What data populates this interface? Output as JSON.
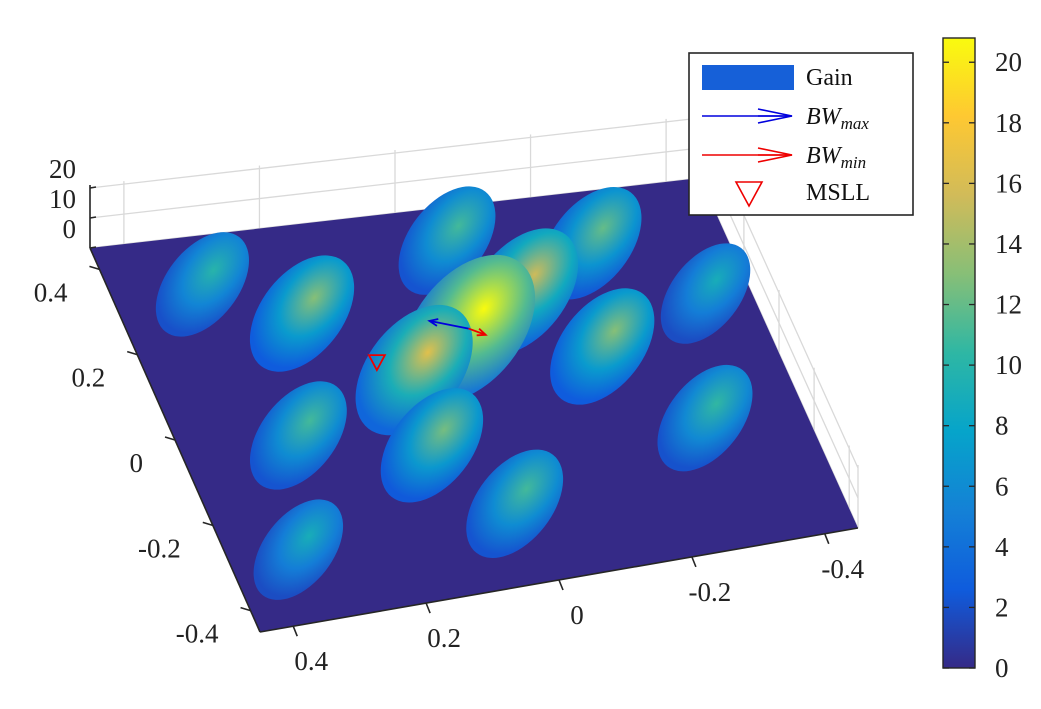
{
  "chart_data": {
    "type": "surface",
    "view": "3d-perspective",
    "x": {
      "ticks": [
        -0.4,
        -0.2,
        0,
        0.2,
        0.4
      ],
      "tick_labels": [
        "-0.4",
        "-0.2",
        "0",
        "0.2",
        "0.4"
      ],
      "lim": [
        -0.45,
        0.45
      ]
    },
    "y": {
      "ticks": [
        -0.4,
        -0.2,
        0,
        0.2,
        0.4
      ],
      "tick_labels": [
        "-0.4",
        "-0.2",
        "0",
        "0.2",
        "0.4"
      ],
      "lim": [
        -0.45,
        0.45
      ]
    },
    "z": {
      "ticks": [
        0,
        10,
        20
      ],
      "tick_labels": [
        "0",
        "10",
        "20"
      ],
      "lim": [
        0,
        21
      ]
    },
    "colorbar": {
      "ticks": [
        0,
        2,
        4,
        6,
        8,
        10,
        12,
        14,
        16,
        18,
        20
      ],
      "tick_labels": [
        "0",
        "2",
        "4",
        "6",
        "8",
        "10",
        "12",
        "14",
        "16",
        "18",
        "20"
      ],
      "range": [
        0,
        20.8
      ],
      "colormap": "parula"
    },
    "colormap_stops": [
      "#352a87",
      "#0f5cdd",
      "#1481d6",
      "#06a4ca",
      "#2eb7a4",
      "#87bf77",
      "#d1bb59",
      "#fec832",
      "#f9fb0e"
    ],
    "surface_peaks": [
      {
        "x": -0.02,
        "y": 0.12,
        "gain": 20.8
      },
      {
        "x": 0.08,
        "y": 0.05,
        "gain": 16.5
      },
      {
        "x": -0.12,
        "y": 0.2,
        "gain": 15.5
      },
      {
        "x": 0.2,
        "y": 0.22,
        "gain": 13
      },
      {
        "x": 0.1,
        "y": -0.12,
        "gain": 12.5
      },
      {
        "x": -0.2,
        "y": 0.05,
        "gain": 13
      },
      {
        "x": 0.28,
        "y": -0.05,
        "gain": 11
      },
      {
        "x": -0.25,
        "y": 0.3,
        "gain": 12
      },
      {
        "x": 0.02,
        "y": -0.28,
        "gain": 11
      },
      {
        "x": -0.3,
        "y": -0.15,
        "gain": 10.5
      },
      {
        "x": 0.32,
        "y": 0.32,
        "gain": 10
      },
      {
        "x": -0.05,
        "y": 0.35,
        "gain": 11
      },
      {
        "x": 0.35,
        "y": -0.3,
        "gain": 9
      },
      {
        "x": -0.38,
        "y": 0.15,
        "gain": 9
      }
    ],
    "annotations": [
      {
        "type": "arrow",
        "name": "BW_max",
        "color": "#0000dd",
        "from": {
          "x": -0.02,
          "y": 0.12
        },
        "to": {
          "x": 0.03,
          "y": 0.15
        }
      },
      {
        "type": "arrow",
        "name": "BW_min",
        "color": "#ee0000",
        "from": {
          "x": -0.02,
          "y": 0.12
        },
        "to": {
          "x": -0.04,
          "y": 0.1
        }
      },
      {
        "type": "marker",
        "name": "MSLL",
        "shape": "triangle-down",
        "color": "#ee0000",
        "x": 0.13,
        "y": 0.07
      }
    ],
    "legend": {
      "placement": "top-right",
      "entries": [
        {
          "key": "gain",
          "label": "Gain",
          "color": "#1660d8"
        },
        {
          "key": "bwmax",
          "label_base": "BW",
          "label_sub": "max",
          "color": "#0000dd"
        },
        {
          "key": "bwmin",
          "label_base": "BW",
          "label_sub": "min",
          "color": "#ee0000"
        },
        {
          "key": "msll",
          "label": "MSLL",
          "color": "#ee0000"
        }
      ]
    }
  }
}
